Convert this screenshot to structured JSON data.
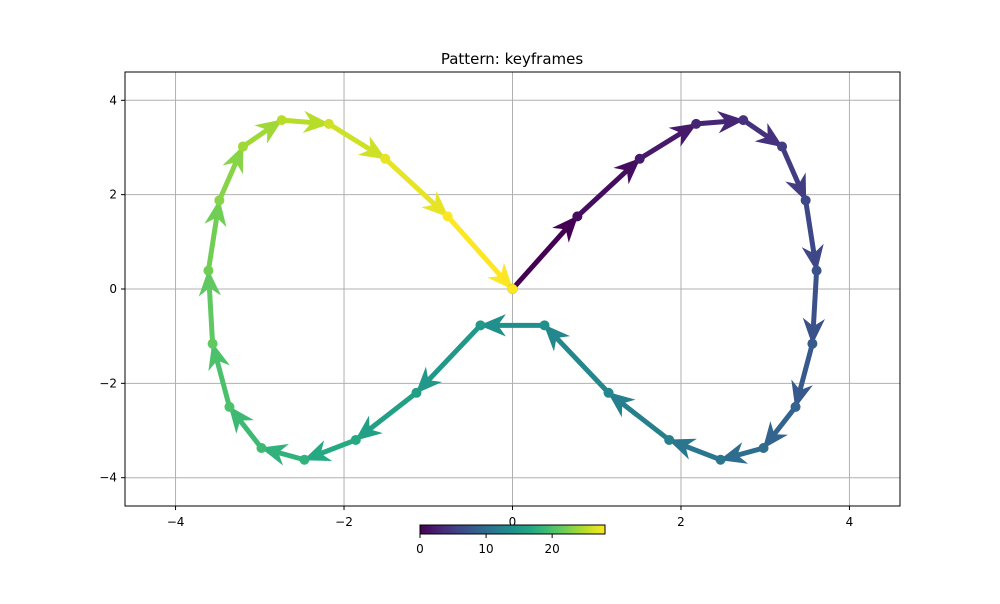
{
  "chart_data": {
    "type": "quiver",
    "title": "Pattern: keyframes",
    "xlabel": "",
    "ylabel": "",
    "xlim": [
      -4.6,
      4.6
    ],
    "ylim": [
      -4.6,
      4.6
    ],
    "grid": true,
    "x_ticks": [
      -4,
      -2,
      0,
      2,
      4
    ],
    "x_tick_labels": [
      "−4",
      "−2",
      "0",
      "2",
      "4"
    ],
    "y_ticks": [
      -4,
      -2,
      0,
      2,
      4
    ],
    "y_tick_labels": [
      "−4",
      "−2",
      "0",
      "2",
      "4"
    ],
    "colormap": "viridis",
    "colorbar": {
      "placement": "bottom-center",
      "range": [
        0,
        28
      ],
      "ticks": [
        0,
        10,
        20
      ],
      "tick_labels": [
        "0",
        "10",
        "20"
      ]
    },
    "points": [
      {
        "x": 0.0,
        "y": 0.0
      },
      {
        "x": 0.77,
        "y": 1.54
      },
      {
        "x": 1.51,
        "y": 2.76
      },
      {
        "x": 2.18,
        "y": 3.5
      },
      {
        "x": 2.74,
        "y": 3.58
      },
      {
        "x": 3.2,
        "y": 3.02
      },
      {
        "x": 3.48,
        "y": 1.88
      },
      {
        "x": 3.61,
        "y": 0.39
      },
      {
        "x": 3.56,
        "y": -1.16
      },
      {
        "x": 3.36,
        "y": -2.5
      },
      {
        "x": 2.98,
        "y": -3.37
      },
      {
        "x": 2.47,
        "y": -3.62
      },
      {
        "x": 1.86,
        "y": -3.2
      },
      {
        "x": 1.14,
        "y": -2.2
      },
      {
        "x": 0.38,
        "y": -0.77
      },
      {
        "x": -0.38,
        "y": -0.77
      },
      {
        "x": -1.14,
        "y": -2.2
      },
      {
        "x": -1.86,
        "y": -3.2
      },
      {
        "x": -2.47,
        "y": -3.62
      },
      {
        "x": -2.98,
        "y": -3.37
      },
      {
        "x": -3.36,
        "y": -2.5
      },
      {
        "x": -3.56,
        "y": -1.16
      },
      {
        "x": -3.61,
        "y": 0.39
      },
      {
        "x": -3.48,
        "y": 1.88
      },
      {
        "x": -3.2,
        "y": 3.02
      },
      {
        "x": -2.74,
        "y": 3.58
      },
      {
        "x": -2.18,
        "y": 3.5
      },
      {
        "x": -1.51,
        "y": 2.76
      },
      {
        "x": -0.77,
        "y": 1.54
      },
      {
        "x": 0.0,
        "y": 0.0
      }
    ],
    "arrows_color_index": [
      0,
      1,
      2,
      3,
      4,
      5,
      6,
      7,
      8,
      9,
      10,
      11,
      12,
      13,
      14,
      15,
      16,
      17,
      18,
      19,
      20,
      21,
      22,
      23,
      24,
      25,
      26,
      27,
      28
    ]
  }
}
